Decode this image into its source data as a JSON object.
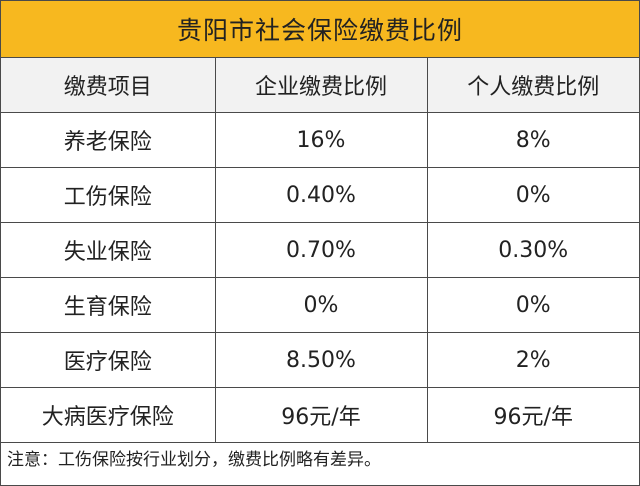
{
  "title": "贵阳市社会保险缴费比例",
  "headers": [
    "缴费项目",
    "企业缴费比例",
    "个人缴费比例"
  ],
  "rows": [
    {
      "item": "养老保险",
      "company": "16%",
      "personal": "8%"
    },
    {
      "item": "工伤保险",
      "company": "0.40%",
      "personal": "0%"
    },
    {
      "item": "失业保险",
      "company": "0.70%",
      "personal": "0.30%"
    },
    {
      "item": "生育保险",
      "company": "0%",
      "personal": "0%"
    },
    {
      "item": "医疗保险",
      "company": "8.50%",
      "personal": "2%"
    },
    {
      "item": "大病医疗保险",
      "company": "96元/年",
      "personal": "96元/年"
    }
  ],
  "note": "注意：工伤保险按行业划分，缴费比例略有差异。",
  "colors": {
    "title_bg": "#f7b81f",
    "header_bg": "#f2f2f2",
    "border": "#4a4a4a"
  }
}
